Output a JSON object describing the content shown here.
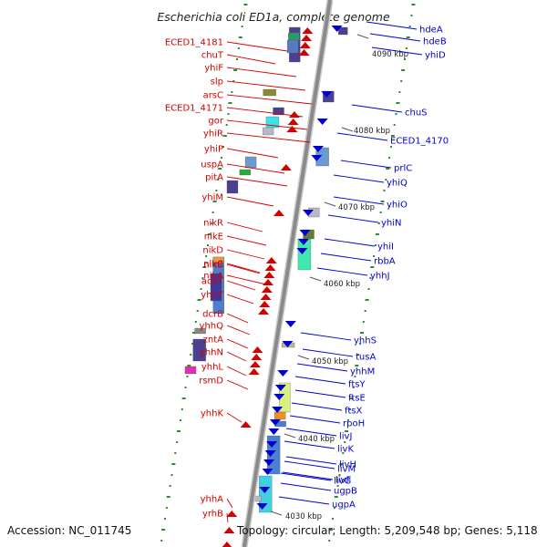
{
  "title": "Escherichia coli ED1a, complete genome",
  "footer": {
    "accession": "Accession: NC_011745",
    "topology": "Topology: circular; Length: 5,209,548 bp; Genes: 5,118"
  },
  "colors": {
    "reverse_strand_genes": "#0000cc",
    "forward_strand_genes": "#d40000",
    "backbone": "#888888",
    "gc_dots": "#2e8b2e"
  },
  "ticks": [
    "4090 kbp",
    "4080 kbp",
    "4070 kbp",
    "4060 kbp",
    "4050 kbp",
    "4040 kbp",
    "4030 kbp"
  ],
  "left_genes": [
    "ECED1_4181",
    "chuT",
    "yhiF",
    "slp",
    "arsC",
    "ECED1_4171",
    "gor",
    "yhiR",
    "yhiP",
    "uspA",
    "pitA",
    "yhiM",
    "nikR",
    "nikE",
    "nikD",
    "nikC",
    "nikB",
    "nikA",
    "acpT",
    "yhhT",
    "dcrB",
    "yhhQ",
    "zntA",
    "yhhN",
    "yhhL",
    "rsmD",
    "yhhK",
    "yhhA",
    "yrhB"
  ],
  "right_genes": [
    "hdeA",
    "hdeB",
    "yhiD",
    "chuS",
    "ECED1_4170",
    "prlC",
    "yhiQ",
    "yhiO",
    "yhiN",
    "yhiI",
    "rbbA",
    "yhhJ",
    "yhhS",
    "tusA",
    "yhhM",
    "ftsY",
    "ftsE",
    "ftsX",
    "rpoH",
    "livJ",
    "livK",
    "livH",
    "livM",
    "livF",
    "livG",
    "ugpB",
    "ugpA"
  ]
}
